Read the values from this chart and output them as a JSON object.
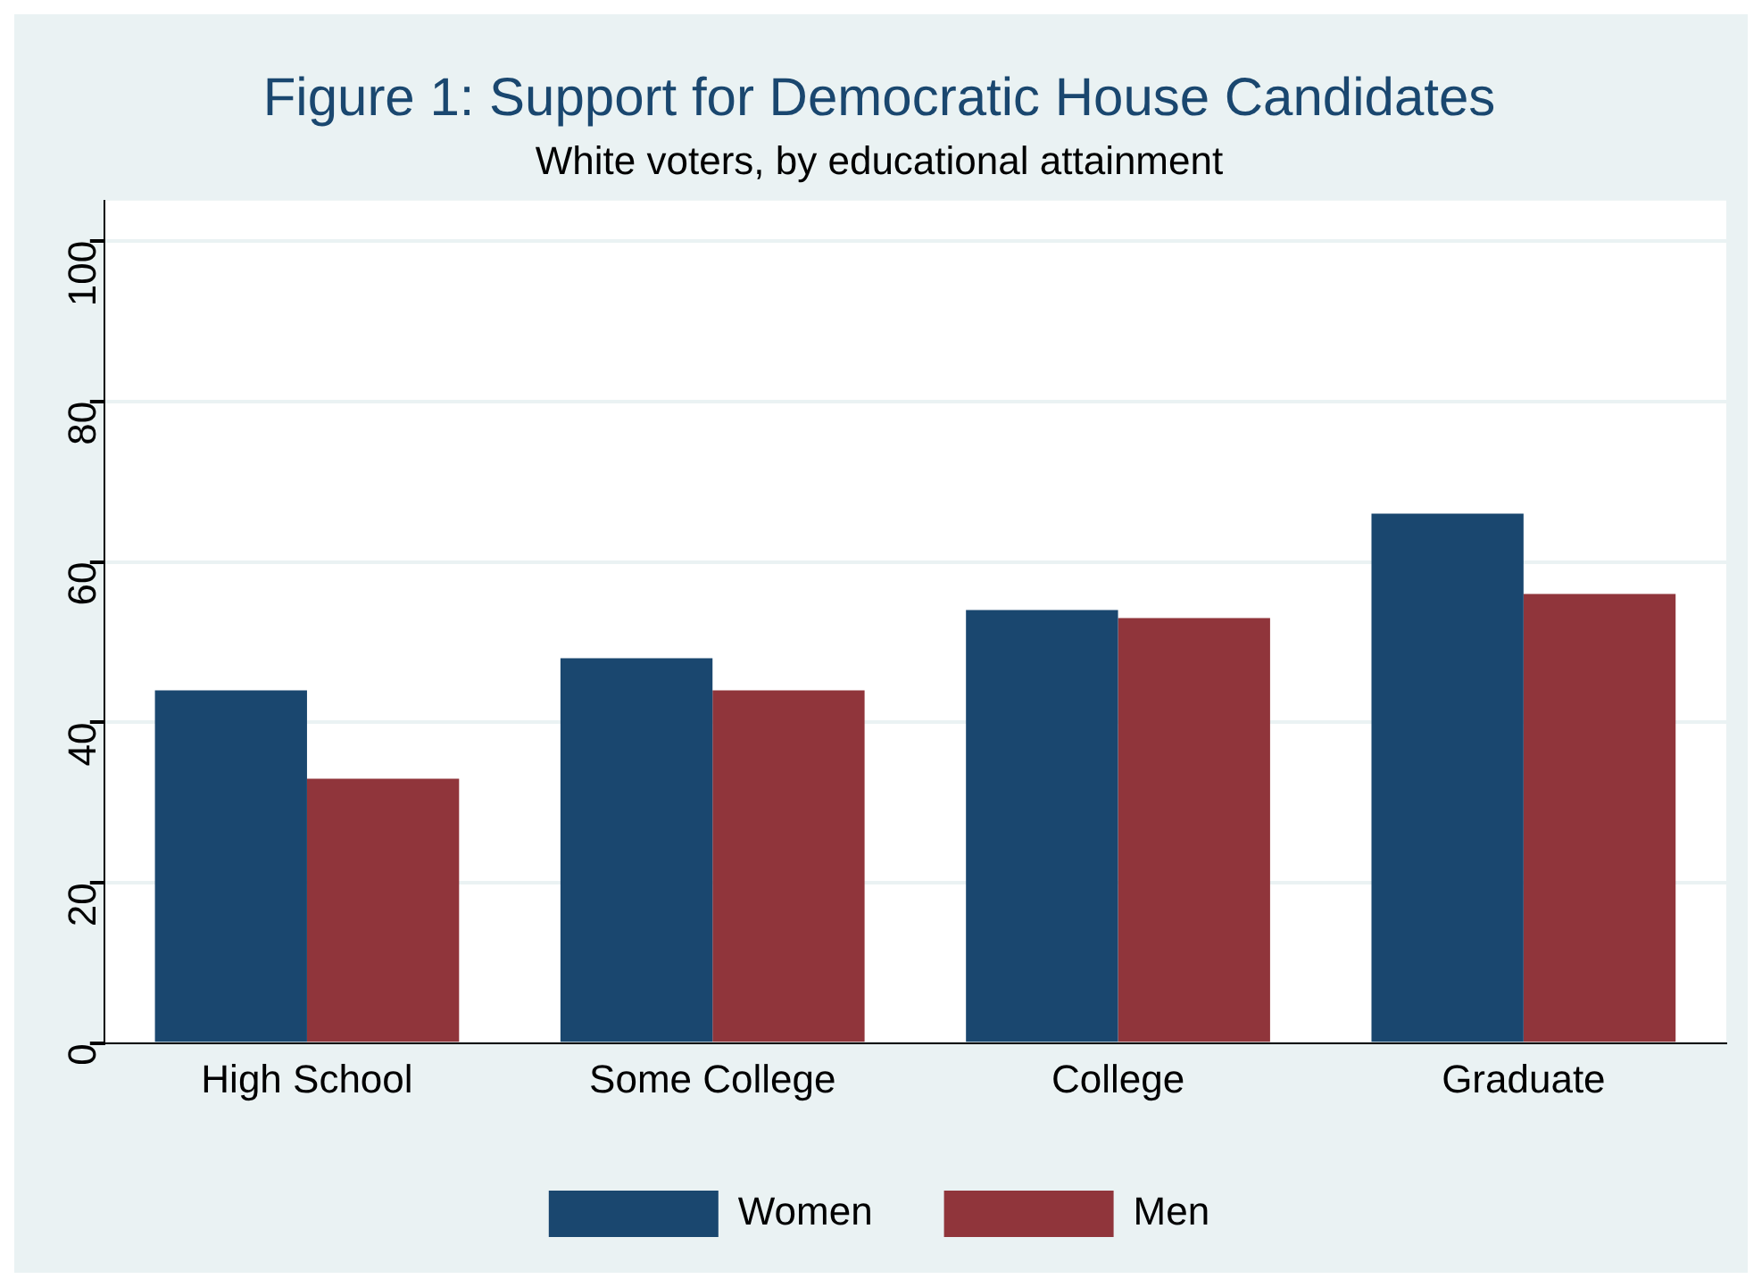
{
  "chart_data": {
    "type": "bar",
    "title": "Figure 1: Support for Democratic House Candidates",
    "subtitle": "White voters, by educational attainment",
    "categories": [
      "High School",
      "Some College",
      "College",
      "Graduate"
    ],
    "series": [
      {
        "name": "Women",
        "color": "#1a476f",
        "values": [
          44,
          48,
          54,
          66
        ]
      },
      {
        "name": "Men",
        "color": "#90353b",
        "values": [
          33,
          44,
          53,
          56
        ]
      }
    ],
    "ylim": [
      0,
      105
    ],
    "yticks": [
      0,
      20,
      40,
      60,
      80,
      100
    ],
    "grid": "y",
    "legend": "bottom"
  }
}
